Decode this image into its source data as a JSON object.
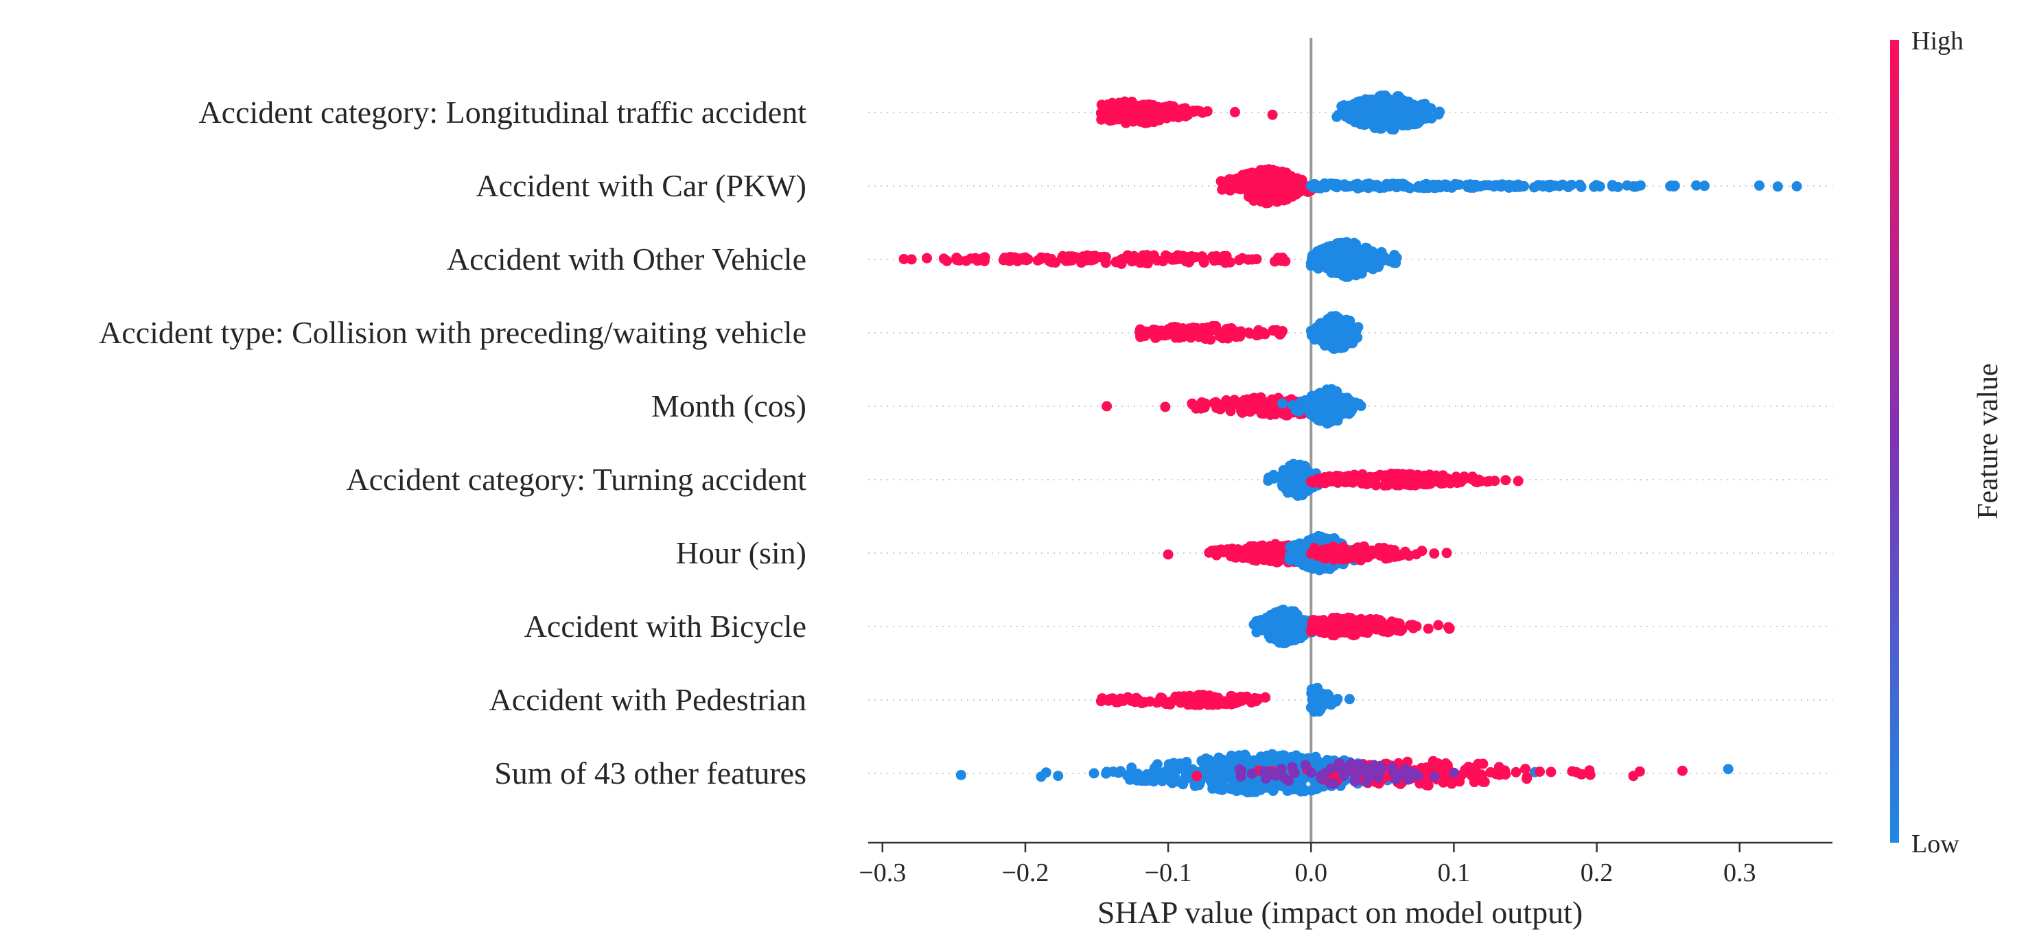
{
  "chart_data": {
    "type": "scatter",
    "subtype": "shap-beeswarm",
    "title": "",
    "xlabel": "SHAP value (impact on model output)",
    "ylabel": "",
    "xlim": [
      -0.31,
      0.365
    ],
    "xticks": [
      -0.3,
      -0.2,
      -0.1,
      0.0,
      0.1,
      0.2,
      0.3
    ],
    "xtick_labels": [
      "−0.3",
      "−0.2",
      "−0.1",
      "0.0",
      "0.1",
      "0.2",
      "0.3"
    ],
    "zero_line": true,
    "grid": false,
    "colorbar": {
      "title": "Feature value",
      "high_label": "High",
      "low_label": "Low",
      "high_color": "#ff0d57",
      "low_color": "#1e88e5",
      "mid_color": "#7f33b8"
    },
    "features": [
      {
        "name": "Accident category: Longitudinal traffic accident",
        "clusters": [
          {
            "range": [
              -0.147,
              -0.027
            ],
            "peak": -0.125,
            "spread": 0.022,
            "n": 170,
            "color": "high",
            "height": 0.55
          },
          {
            "range": [
              0.018,
              0.09
            ],
            "peak": 0.054,
            "spread": 0.018,
            "n": 230,
            "color": "low",
            "height": 0.85
          }
        ]
      },
      {
        "name": "Accident with Car (PKW)",
        "clusters": [
          {
            "range": [
              -0.063,
              0.0
            ],
            "peak": -0.03,
            "spread": 0.015,
            "n": 230,
            "color": "high",
            "height": 0.85
          },
          {
            "range": [
              0.0,
              0.34
            ],
            "peak": 0.01,
            "spread": 0.12,
            "n": 170,
            "color": "low",
            "height": 0.12
          }
        ]
      },
      {
        "name": "Accident with Other Vehicle",
        "clusters": [
          {
            "range": [
              -0.285,
              -0.018
            ],
            "peak": -0.12,
            "spread": 0.07,
            "n": 150,
            "color": "high",
            "height": 0.22
          },
          {
            "range": [
              0.0,
              0.06
            ],
            "peak": 0.025,
            "spread": 0.014,
            "n": 230,
            "color": "low",
            "height": 0.85
          }
        ]
      },
      {
        "name": "Accident type: Collision with preceding/waiting vehicle",
        "clusters": [
          {
            "range": [
              -0.12,
              -0.02
            ],
            "peak": -0.08,
            "spread": 0.03,
            "n": 110,
            "color": "high",
            "height": 0.35
          },
          {
            "range": [
              0.0,
              0.033
            ],
            "peak": 0.018,
            "spread": 0.009,
            "n": 170,
            "color": "low",
            "height": 0.85
          }
        ]
      },
      {
        "name": "Month (cos)",
        "clusters": [
          {
            "range": [
              -0.143,
              -0.143
            ],
            "peak": -0.143,
            "spread": 0.001,
            "n": 1,
            "color": "high",
            "height": 0.1
          },
          {
            "range": [
              -0.102,
              0.01
            ],
            "peak": -0.025,
            "spread": 0.03,
            "n": 160,
            "color": "high",
            "height": 0.45
          },
          {
            "range": [
              -0.02,
              0.035
            ],
            "peak": 0.012,
            "spread": 0.009,
            "n": 190,
            "color": "low",
            "height": 0.85
          }
        ]
      },
      {
        "name": "Accident category: Turning accident",
        "clusters": [
          {
            "range": [
              -0.03,
              0.005
            ],
            "peak": -0.01,
            "spread": 0.007,
            "n": 150,
            "color": "low",
            "height": 0.85
          },
          {
            "range": [
              0.0,
              0.145
            ],
            "peak": 0.06,
            "spread": 0.04,
            "n": 150,
            "color": "high",
            "height": 0.3
          }
        ]
      },
      {
        "name": "Hour (sin)",
        "clusters": [
          {
            "range": [
              -0.1,
              0.0
            ],
            "peak": -0.02,
            "spread": 0.025,
            "n": 160,
            "color": "high",
            "height": 0.45
          },
          {
            "range": [
              -0.015,
              0.05
            ],
            "peak": 0.008,
            "spread": 0.013,
            "n": 200,
            "color": "low",
            "height": 0.85
          },
          {
            "range": [
              0.0,
              0.095
            ],
            "peak": 0.03,
            "spread": 0.03,
            "n": 90,
            "color": "high",
            "height": 0.35
          }
        ]
      },
      {
        "name": "Accident with Bicycle",
        "clusters": [
          {
            "range": [
              -0.04,
              0.005
            ],
            "peak": -0.018,
            "spread": 0.01,
            "n": 190,
            "color": "low",
            "height": 0.85
          },
          {
            "range": [
              0.0,
              0.097
            ],
            "peak": 0.025,
            "spread": 0.025,
            "n": 160,
            "color": "high",
            "height": 0.45
          }
        ]
      },
      {
        "name": "Accident with Pedestrian",
        "clusters": [
          {
            "range": [
              -0.147,
              -0.032
            ],
            "peak": -0.08,
            "spread": 0.035,
            "n": 110,
            "color": "high",
            "height": 0.25
          },
          {
            "range": [
              0.0,
              0.027
            ],
            "peak": 0.003,
            "spread": 0.006,
            "n": 60,
            "color": "low",
            "height": 0.6
          }
        ]
      },
      {
        "name": "Sum of 43 other features",
        "clusters": [
          {
            "range": [
              -0.245,
              0.292
            ],
            "peak": -0.03,
            "spread": 0.05,
            "n": 500,
            "color": "low",
            "height": 0.95
          },
          {
            "range": [
              -0.08,
              0.26
            ],
            "peak": 0.08,
            "spread": 0.05,
            "n": 140,
            "color": "high",
            "height": 0.6
          },
          {
            "range": [
              -0.05,
              0.1
            ],
            "peak": 0.02,
            "spread": 0.04,
            "n": 60,
            "color": "mid",
            "height": 0.5
          }
        ]
      }
    ]
  }
}
